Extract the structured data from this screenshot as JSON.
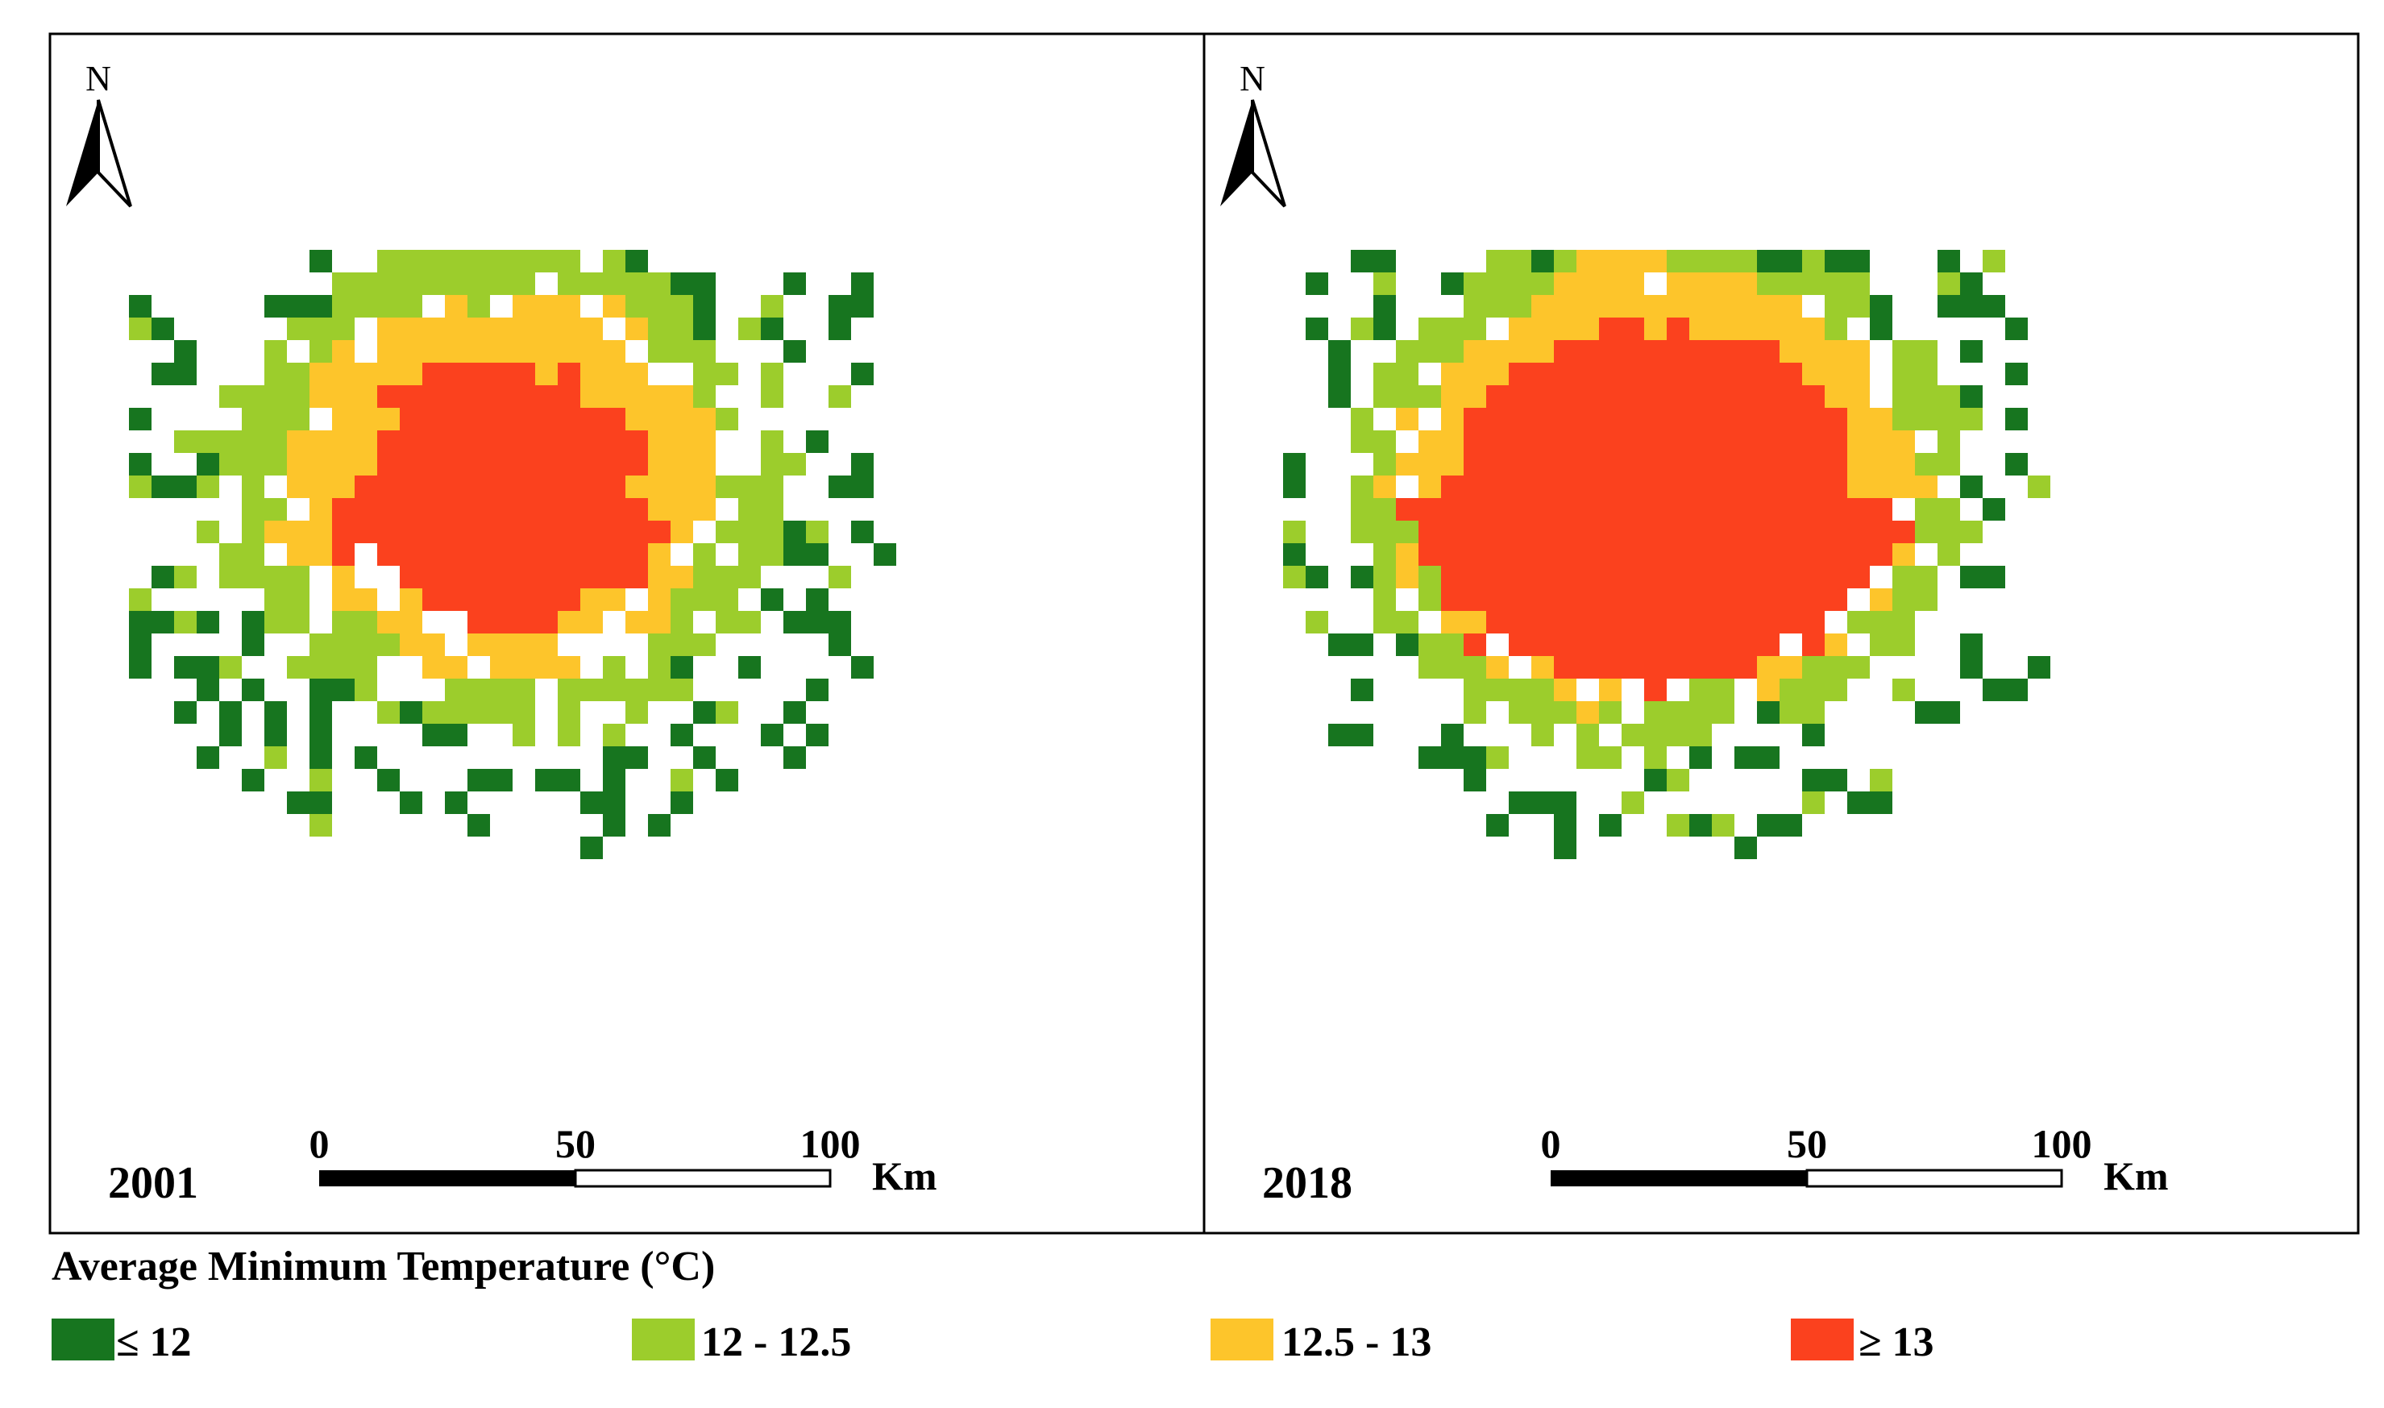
{
  "figure": {
    "panels": [
      {
        "year": "2001"
      },
      {
        "year": "2018"
      }
    ],
    "north_label": "N",
    "scale_bar": {
      "labels": [
        "0",
        "50",
        "100"
      ],
      "unit": "Km"
    },
    "legend": {
      "title": "Average Minimum Temperature (°C)",
      "classes": [
        {
          "label": "≤ 12",
          "color": "#17751f"
        },
        {
          "label": "12 - 12.5",
          "color": "#9ccd2c"
        },
        {
          "label": "12.5 - 13",
          "color": "#fdc52b"
        },
        {
          "label": "≥ 13",
          "color": "#fb411e"
        }
      ]
    }
  }
}
